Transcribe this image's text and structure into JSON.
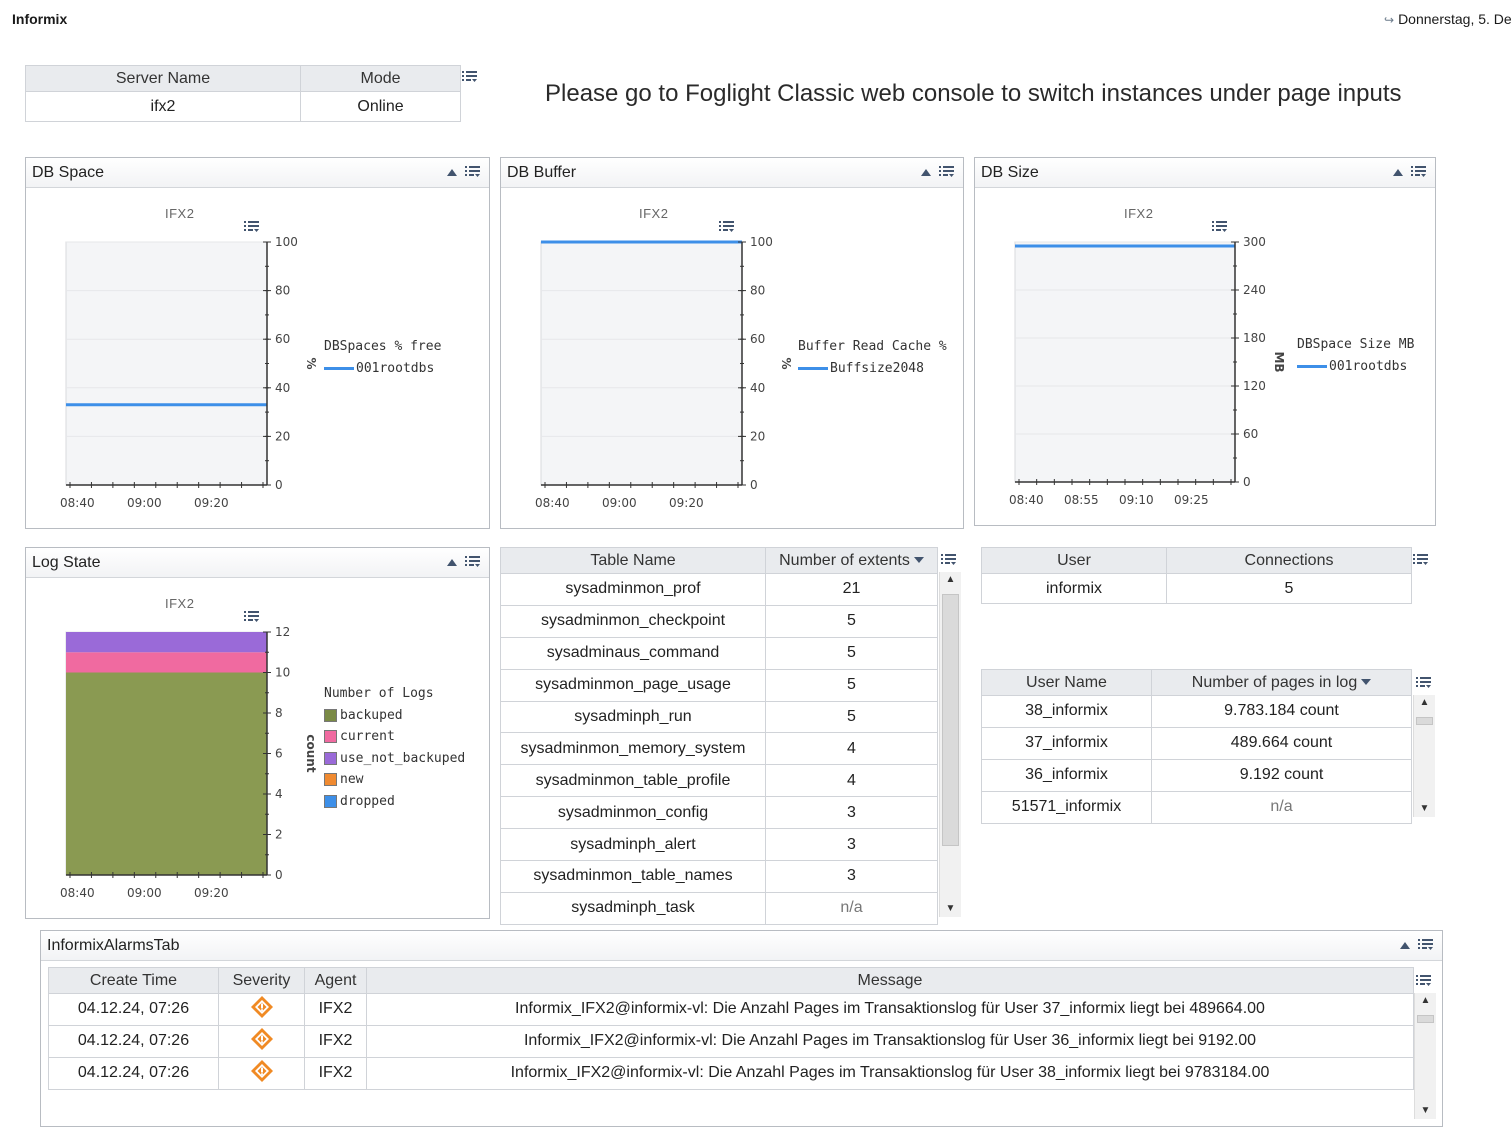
{
  "header": {
    "app_title": "Informix",
    "date_text": "Donnerstag, 5. De"
  },
  "server_table": {
    "headers": [
      "Server Name",
      "Mode"
    ],
    "rows": [
      [
        "ifx2",
        "Online"
      ]
    ]
  },
  "notice": "Please go to Foglight Classic web console to switch instances under page inputs",
  "panels": {
    "db_space": "DB Space",
    "db_buffer": "DB Buffer",
    "db_size": "DB Size",
    "log_state": "Log State",
    "alarms": "InformixAlarmsTab"
  },
  "chart_data": [
    {
      "id": "db_space",
      "type": "line",
      "title": "IFX2",
      "ylabel": "%",
      "ylim": [
        0,
        100
      ],
      "yticks": [
        "100",
        "80",
        "60",
        "40",
        "20",
        "0"
      ],
      "xticks": [
        "08:40",
        "09:00",
        "09:20"
      ],
      "legend_title": "DBSpaces % free",
      "series": [
        {
          "name": "001rootdbs",
          "values": [
            33,
            33
          ]
        }
      ],
      "colors": {
        "series": "#3d8fe8"
      }
    },
    {
      "id": "db_buffer",
      "type": "line",
      "title": "IFX2",
      "ylabel": "%",
      "ylim": [
        0,
        100
      ],
      "yticks": [
        "100",
        "80",
        "60",
        "40",
        "20",
        "0"
      ],
      "xticks": [
        "08:40",
        "09:00",
        "09:20"
      ],
      "legend_title": "Buffer Read Cache %",
      "series": [
        {
          "name": "Buffsize2048",
          "values": [
            100,
            100
          ]
        }
      ],
      "colors": {
        "series": "#3d8fe8"
      }
    },
    {
      "id": "db_size",
      "type": "line",
      "title": "IFX2",
      "ylabel": "MB",
      "ylim": [
        0,
        300
      ],
      "yticks": [
        "300",
        "240",
        "180",
        "120",
        "60",
        "0"
      ],
      "xticks": [
        "08:40",
        "08:55",
        "09:10",
        "09:25"
      ],
      "legend_title": "DBSpace Size MB",
      "series": [
        {
          "name": "001rootdbs",
          "values": [
            295,
            295
          ]
        }
      ],
      "colors": {
        "series": "#3d8fe8"
      }
    },
    {
      "id": "log_state",
      "type": "area",
      "title": "IFX2",
      "ylabel": "count",
      "ylim": [
        0,
        12
      ],
      "yticks": [
        "12",
        "10",
        "8",
        "6",
        "4",
        "2",
        "0"
      ],
      "xticks": [
        "08:40",
        "09:00",
        "09:20"
      ],
      "legend_title": "Number of Logs",
      "series": [
        {
          "name": "backuped",
          "value": 10,
          "color": "#8a9a52"
        },
        {
          "name": "current",
          "value": 1,
          "color": "#f06aa0"
        },
        {
          "name": "use_not_backuped",
          "value": 1,
          "color": "#9a6ad8"
        },
        {
          "name": "new",
          "value": 0,
          "color": "#f08a30"
        },
        {
          "name": "dropped",
          "value": 0,
          "color": "#3d8fe8"
        }
      ]
    }
  ],
  "extents_table": {
    "headers": [
      "Table Name",
      "Number of extents"
    ],
    "rows": [
      [
        "sysadminmon_prof",
        "21"
      ],
      [
        "sysadminmon_checkpoint",
        "5"
      ],
      [
        "sysadminaus_command",
        "5"
      ],
      [
        "sysadminmon_page_usage",
        "5"
      ],
      [
        "sysadminph_run",
        "5"
      ],
      [
        "sysadminmon_memory_system",
        "4"
      ],
      [
        "sysadminmon_table_profile",
        "4"
      ],
      [
        "sysadminmon_config",
        "3"
      ],
      [
        "sysadminph_alert",
        "3"
      ],
      [
        "sysadminmon_table_names",
        "3"
      ],
      [
        "sysadminph_task",
        "n/a"
      ]
    ]
  },
  "connections_table": {
    "headers": [
      "User",
      "Connections"
    ],
    "rows": [
      [
        "informix",
        "5"
      ]
    ]
  },
  "pages_table": {
    "headers": [
      "User Name",
      "Number of pages in log"
    ],
    "rows": [
      [
        "38_informix",
        "9.783.184 count"
      ],
      [
        "37_informix",
        "489.664 count"
      ],
      [
        "36_informix",
        "9.192 count"
      ],
      [
        "51571_informix",
        "n/a"
      ]
    ]
  },
  "alarms_table": {
    "headers": [
      "Create Time",
      "Severity",
      "Agent",
      "Message"
    ],
    "rows": [
      [
        "04.12.24, 07:26",
        "warning-icon",
        "IFX2",
        "Informix_IFX2@informix-vl: Die Anzahl Pages im Transaktionslog für User 37_informix liegt bei 489664.00"
      ],
      [
        "04.12.24, 07:26",
        "warning-icon",
        "IFX2",
        "Informix_IFX2@informix-vl: Die Anzahl Pages im Transaktionslog für User 36_informix liegt bei 9192.00"
      ],
      [
        "04.12.24, 07:26",
        "warning-icon",
        "IFX2",
        "Informix_IFX2@informix-vl: Die Anzahl Pages im Transaktionslog für User 38_informix liegt bei 9783184.00"
      ]
    ],
    "colors": {
      "warning": "#f08a24"
    }
  }
}
